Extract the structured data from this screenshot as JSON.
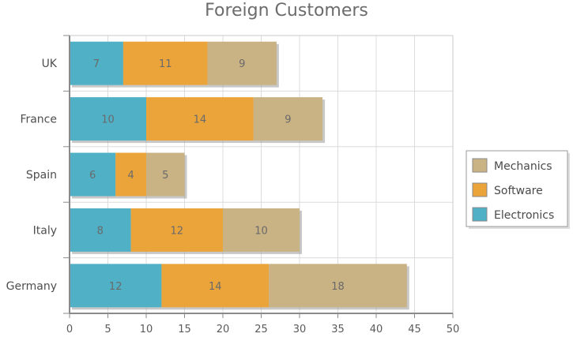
{
  "chart_data": {
    "type": "bar",
    "orientation": "horizontal",
    "stacked": true,
    "title": "Foreign Customers",
    "categories": [
      "Germany",
      "Italy",
      "Spain",
      "France",
      "UK"
    ],
    "series": [
      {
        "name": "Electronics",
        "color": "#4fb0c6",
        "values": [
          12,
          8,
          6,
          10,
          7
        ]
      },
      {
        "name": "Software",
        "color": "#eba43a",
        "values": [
          14,
          12,
          4,
          14,
          11
        ]
      },
      {
        "name": "Mechanics",
        "color": "#c9b284",
        "values": [
          18,
          10,
          5,
          9,
          9
        ]
      }
    ],
    "xlim": [
      0,
      50
    ],
    "xticks": [
      0,
      5,
      10,
      15,
      20,
      25,
      30,
      35,
      40,
      45,
      50
    ],
    "grid": true,
    "legend_position": "right",
    "legend_order": [
      "Mechanics",
      "Software",
      "Electronics"
    ]
  }
}
